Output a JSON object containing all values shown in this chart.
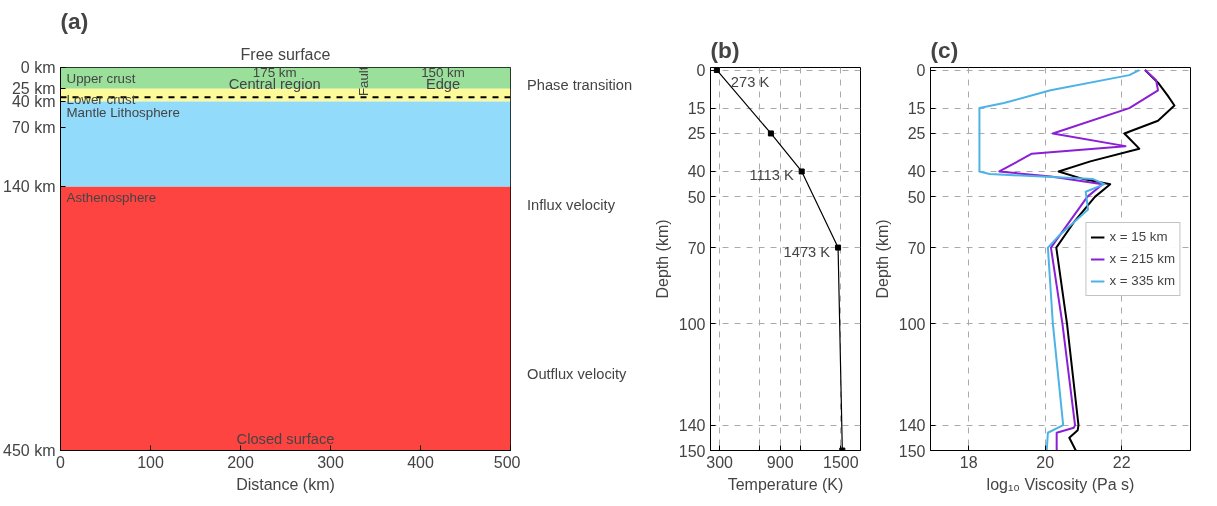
{
  "chart_data": [
    {
      "type": "area",
      "stacked": true,
      "title": "(a)",
      "subtitle": "Free surface",
      "xlabel": "Distance (km)",
      "xlim": [
        0,
        500
      ],
      "xticks": [
        0,
        100,
        200,
        300,
        400,
        500
      ],
      "ylim": [
        450,
        0
      ],
      "yticks": [
        {
          "value": 0,
          "label": "0 km"
        },
        {
          "value": 25,
          "label": "25 km"
        },
        {
          "value": 40,
          "label": "40 km"
        },
        {
          "value": 70,
          "label": "70 km"
        },
        {
          "value": 140,
          "label": "140 km"
        },
        {
          "value": 450,
          "label": "450 km"
        }
      ],
      "series": [
        {
          "name": "Upper crust",
          "color": "#9be09a",
          "x": [
            0,
            500
          ],
          "values": [
            25,
            25
          ]
        },
        {
          "name": "Lower crust",
          "color": "#fdfa99",
          "x": [
            0,
            500
          ],
          "values": [
            15,
            15
          ]
        },
        {
          "name": "Mantle Lithosphere",
          "color": "#93dbfb",
          "x": [
            0,
            500
          ],
          "values": [
            100,
            100
          ]
        },
        {
          "name": "Asthenosphere",
          "color": "#fe4441",
          "x": [
            0,
            500
          ],
          "values": [
            310,
            310
          ]
        }
      ],
      "ref_lines": [
        {
          "axis": "y",
          "value": 35,
          "label": "Phase transition",
          "color": "#000000",
          "line_style": "dashed"
        }
      ],
      "annotations": [
        "175 km",
        "Central region",
        "Fault",
        "150 km",
        "Edge",
        "Closed surface",
        "Influx velocity",
        "Outflux velocity"
      ],
      "grid": false
    },
    {
      "type": "line",
      "title": "(b)",
      "xlabel": "Temperature (K)",
      "ylabel": "Depth (km)",
      "xlim": [
        210,
        1695
      ],
      "xticks": [
        300,
        {
          "value": 700,
          "label": null
        },
        900,
        {
          "value": 1100,
          "label": null
        },
        1500
      ],
      "ylim": [
        150,
        -1
      ],
      "yticks": [
        0,
        15,
        25,
        40,
        50,
        70,
        100,
        140,
        150
      ],
      "series": [
        {
          "color": "#000000",
          "x": [
            273,
            808,
            1113,
            1473,
            1515
          ],
          "values": [
            0,
            25,
            40,
            70,
            150
          ]
        }
      ],
      "marker": "square",
      "annotations": [
        {
          "text": "273 K",
          "x": 273,
          "y": 0
        },
        {
          "text": "1113 K",
          "x": 1113,
          "y": 40
        },
        {
          "text": "1473 K",
          "x": 1473,
          "y": 70
        }
      ],
      "grid": true
    },
    {
      "type": "line",
      "title": "(c)",
      "xlabel": "log₁₀ Viscosity (Pa s)",
      "ylabel": "Depth (km)",
      "xlim": [
        17.0,
        23.8
      ],
      "xticks": [
        18,
        20,
        22
      ],
      "ylim": [
        150,
        -1
      ],
      "yticks": [
        0,
        15,
        25,
        40,
        50,
        70,
        100,
        140,
        150
      ],
      "series": [
        {
          "name": "x = 15 km",
          "color": "#000000",
          "x": [
            22.61,
            22.95,
            23.2,
            23.38,
            22.95,
            22.07,
            22.2,
            22.46,
            21.18,
            20.35,
            21.0,
            21.7,
            21.3,
            20.75,
            20.29,
            20.57,
            20.87,
            20.85,
            20.63,
            20.8
          ],
          "values": [
            0,
            5,
            10,
            14,
            20,
            25,
            27,
            31,
            36,
            40,
            43,
            45,
            50,
            60,
            70,
            100,
            140,
            142,
            145,
            150
          ]
        },
        {
          "name": "x = 215 km",
          "color": "#8a1fd6",
          "x": [
            22.61,
            22.9,
            22.95,
            22.2,
            20.2,
            22.1,
            19.65,
            18.8,
            20.15,
            21.5,
            21.1,
            20.15,
            20.45,
            20.78,
            20.75,
            20.3,
            20.3
          ],
          "values": [
            0,
            4,
            8,
            15,
            25,
            30,
            33,
            40,
            42,
            45,
            50,
            70,
            100,
            140,
            141,
            143,
            150
          ]
        },
        {
          "name": "x = 335 km",
          "color": "#4db3e6",
          "x": [
            22.46,
            22.2,
            20.14,
            18.92,
            18.28,
            18.28,
            18.55,
            21.25,
            21.55,
            21.06,
            21.12,
            20.38,
            20.07,
            20.2,
            20.47,
            20.07,
            20.04
          ],
          "values": [
            0,
            2,
            8,
            13,
            15,
            40,
            41,
            43,
            45,
            48,
            55,
            65,
            70,
            100,
            140,
            143,
            150
          ]
        }
      ],
      "legend": "center right",
      "grid": true
    }
  ]
}
